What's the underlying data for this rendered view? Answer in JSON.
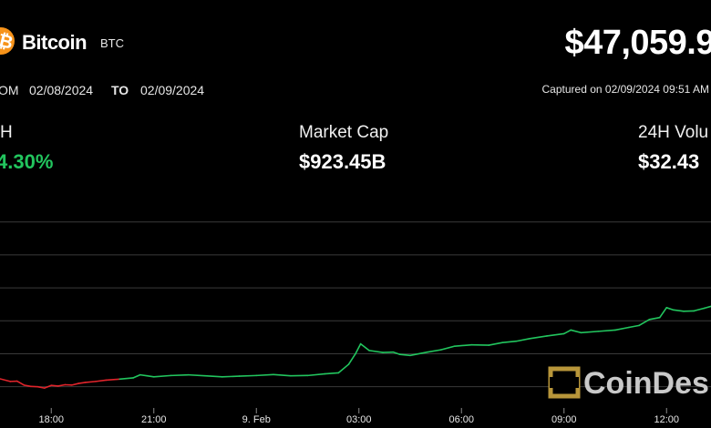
{
  "header": {
    "name": "Bitcoin",
    "ticker": "BTC",
    "price": "$47,059.9",
    "range_from_label": "OM",
    "range_from": "02/08/2024",
    "range_to_label": "TO",
    "range_to": "02/09/2024",
    "captured": "Captured on 02/09/2024 09:51 AM"
  },
  "stats": [
    {
      "label": "H",
      "value": "4.30%"
    },
    {
      "label": "Market Cap",
      "value": "$923.45B"
    },
    {
      "label": "24H Volu",
      "value": "$32.43"
    }
  ],
  "watermark": "CoinDes",
  "colors": {
    "up": "#22c55e",
    "down": "#e0242b",
    "grid": "#3a3a3a",
    "brand_orange": "#f7931a",
    "watermark_gold": "#b8963a"
  },
  "chart_data": {
    "type": "line",
    "x_tick_labels": [
      "18:00",
      "21:00",
      "9. Feb",
      "03:00",
      "06:00",
      "09:00",
      "12:00"
    ],
    "x_tick_hours": [
      18,
      21,
      24,
      27,
      30,
      33,
      36
    ],
    "xlim": [
      16.5,
      37.3
    ],
    "ylim": [
      42300,
      48600
    ],
    "gridlines": [
      43000,
      44000,
      45000,
      46000,
      47000,
      48000
    ],
    "grid": true,
    "series": [
      {
        "points": [
          [
            16.5,
            43240
          ],
          [
            16.8,
            43160
          ],
          [
            17.0,
            43170
          ],
          [
            17.2,
            43050
          ],
          [
            17.4,
            43010
          ],
          [
            17.6,
            43000
          ],
          [
            17.8,
            42960
          ],
          [
            18.0,
            43040
          ],
          [
            18.2,
            43020
          ],
          [
            18.4,
            43060
          ],
          [
            18.6,
            43050
          ],
          [
            18.8,
            43100
          ],
          [
            19.0,
            43130
          ],
          [
            19.3,
            43160
          ],
          [
            19.6,
            43200
          ],
          [
            20.0,
            43230
          ],
          [
            20.4,
            43270
          ],
          [
            20.6,
            43360
          ],
          [
            20.8,
            43330
          ],
          [
            21.0,
            43300
          ],
          [
            21.5,
            43340
          ],
          [
            22.0,
            43360
          ],
          [
            22.5,
            43330
          ],
          [
            23.0,
            43300
          ],
          [
            23.5,
            43320
          ],
          [
            24.0,
            43340
          ],
          [
            24.5,
            43370
          ],
          [
            25.0,
            43330
          ],
          [
            25.5,
            43340
          ],
          [
            26.0,
            43390
          ],
          [
            26.4,
            43420
          ],
          [
            26.7,
            43680
          ],
          [
            26.9,
            44000
          ],
          [
            27.05,
            44300
          ],
          [
            27.3,
            44100
          ],
          [
            27.7,
            44040
          ],
          [
            28.0,
            44050
          ],
          [
            28.2,
            43980
          ],
          [
            28.5,
            43950
          ],
          [
            29.0,
            44050
          ],
          [
            29.4,
            44120
          ],
          [
            29.8,
            44230
          ],
          [
            30.3,
            44270
          ],
          [
            30.8,
            44260
          ],
          [
            31.2,
            44340
          ],
          [
            31.6,
            44380
          ],
          [
            32.0,
            44460
          ],
          [
            32.5,
            44540
          ],
          [
            33.0,
            44610
          ],
          [
            33.2,
            44720
          ],
          [
            33.5,
            44640
          ],
          [
            34.0,
            44680
          ],
          [
            34.5,
            44720
          ],
          [
            34.9,
            44800
          ],
          [
            35.2,
            44860
          ],
          [
            35.5,
            45040
          ],
          [
            35.8,
            45100
          ],
          [
            36.0,
            45400
          ],
          [
            36.2,
            45330
          ],
          [
            36.5,
            45290
          ],
          [
            36.8,
            45300
          ],
          [
            37.1,
            45380
          ],
          [
            37.3,
            45440
          ]
        ]
      }
    ]
  }
}
